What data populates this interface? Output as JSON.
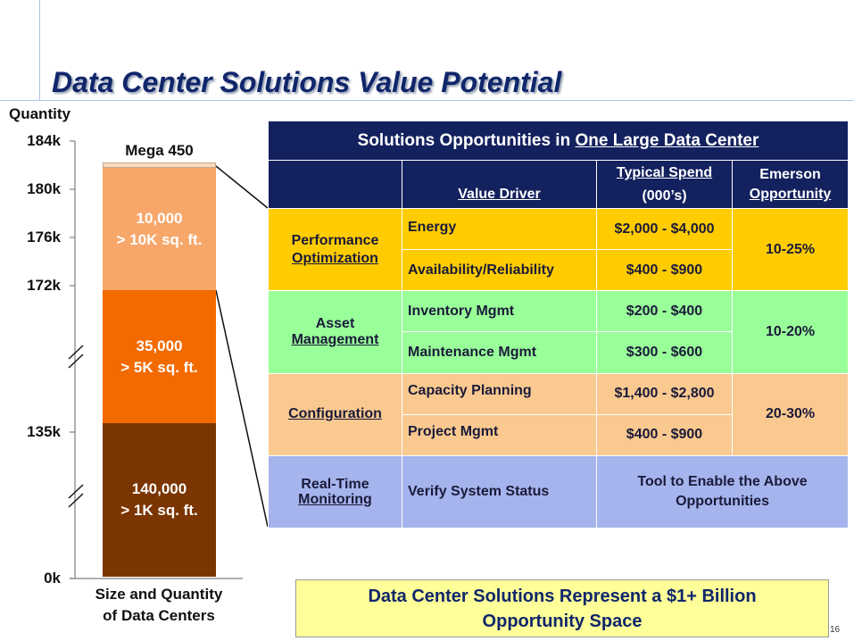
{
  "title": "Data Center Solutions Value Potential",
  "left_chart": {
    "axis_title": "Quantity",
    "ticks": [
      "184k",
      "180k",
      "176k",
      "172k",
      "135k",
      "0k"
    ],
    "top_label": "Mega 450",
    "segments": [
      {
        "line1": "10,000",
        "line2": "> 10K sq. ft.",
        "color": "#f7a76a"
      },
      {
        "line1": "35,000",
        "line2": "> 5K sq. ft.",
        "color": "#f36a00"
      },
      {
        "line1": "140,000",
        "line2": "> 1K sq. ft.",
        "color": "#7b3500"
      }
    ],
    "bottom_label_line1": "Size and Quantity",
    "bottom_label_line2": "of Data Centers"
  },
  "table": {
    "header_title_prefix": "Solutions Opportunities in ",
    "header_title_underlined": "One Large Data Center",
    "col_value_driver": "Value Driver",
    "col_spend_line1": "Typical Spend",
    "col_spend_line2": "(000’s)",
    "col_opportunity_line1": "Emerson",
    "col_opportunity_line2": "Opportunity",
    "groups": [
      {
        "line1": "Performance",
        "line2": "Optimization",
        "rows": [
          {
            "driver": "Energy",
            "spend": "$2,000 - $4,000"
          },
          {
            "driver": "Availability/Reliability",
            "spend": "$400 - $900"
          }
        ],
        "opportunity": "10-25%"
      },
      {
        "line1": "Asset",
        "line2": "Management",
        "rows": [
          {
            "driver": "Inventory Mgmt",
            "spend": "$200 - $400"
          },
          {
            "driver": "Maintenance Mgmt",
            "spend": "$300 - $600"
          }
        ],
        "opportunity": "10-20%"
      },
      {
        "line1": "",
        "line2": "Configuration",
        "rows": [
          {
            "driver": "Capacity Planning",
            "spend": "$1,400 - $2,800"
          },
          {
            "driver": "Project Mgmt",
            "spend": "$400 - $900"
          }
        ],
        "opportunity": "20-30%"
      }
    ],
    "monitoring": {
      "line1": "Real-Time",
      "line2": "Monitoring",
      "driver": "Verify System Status",
      "tool_line1": "Tool to Enable the Above",
      "tool_line2": "Opportunities"
    }
  },
  "banner": {
    "line1": "Data Center Solutions Represent a $1+ Billion",
    "line2": "Opportunity Space"
  },
  "page_number": "16",
  "colors": {
    "header_navy": "#13215e",
    "performance_yellow": "#ffcc00",
    "asset_green": "#99ff99",
    "config_peach": "#fac98f",
    "monitoring_blue": "#a5b4ec",
    "banner_yellow": "#ffff99",
    "title_navy": "#10266b"
  }
}
